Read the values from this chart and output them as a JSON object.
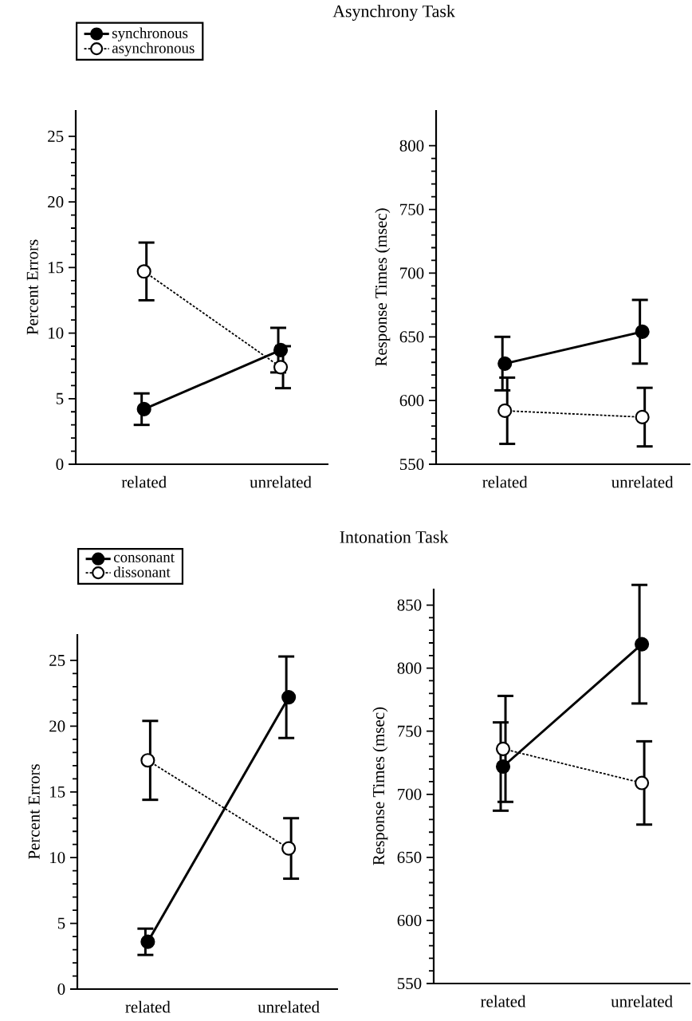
{
  "chart_data": [
    {
      "type": "line",
      "title": "Asynchrony Task",
      "categories": [
        "related",
        "unrelated"
      ],
      "ylabel": "Percent Errors",
      "ylim": [
        0,
        27
      ],
      "yticks": [
        0,
        5,
        10,
        15,
        20,
        25
      ],
      "legend": "top left",
      "marker": "circle",
      "series": [
        {
          "name": "synchronous",
          "color": "#000000",
          "line_style": "solid",
          "values": [
            4.2,
            8.7
          ],
          "errors": [
            1.2,
            1.7
          ]
        },
        {
          "name": "asynchronous",
          "color": "#ffffff",
          "line_style": "dashed",
          "values": [
            14.7,
            7.4
          ],
          "errors": [
            2.2,
            1.6
          ]
        }
      ]
    },
    {
      "type": "line",
      "categories": [
        "related",
        "unrelated"
      ],
      "ylabel": "Response Times (msec)",
      "ylim": [
        550,
        828
      ],
      "yticks": [
        550,
        600,
        650,
        700,
        750,
        800
      ],
      "marker": "circle",
      "series": [
        {
          "color": "#000000",
          "line_style": "solid",
          "values": [
            629,
            654
          ],
          "errors": [
            21,
            25
          ]
        },
        {
          "color": "#ffffff",
          "line_style": "dashed",
          "values": [
            592,
            587
          ],
          "errors": [
            26,
            23
          ]
        }
      ]
    },
    {
      "type": "line",
      "title": "Intonation Task",
      "categories": [
        "related",
        "unrelated"
      ],
      "ylabel": "Percent Errors",
      "ylim": [
        0,
        27
      ],
      "yticks": [
        0,
        5,
        10,
        15,
        20,
        25
      ],
      "legend": "top left",
      "marker": "circle",
      "series": [
        {
          "name": "consonant",
          "color": "#000000",
          "line_style": "solid",
          "values": [
            3.6,
            22.2
          ],
          "errors": [
            1.0,
            3.1
          ]
        },
        {
          "name": "dissonant",
          "color": "#ffffff",
          "line_style": "dashed",
          "values": [
            17.4,
            10.7
          ],
          "errors": [
            3.0,
            2.3
          ]
        }
      ]
    },
    {
      "type": "line",
      "categories": [
        "related",
        "unrelated"
      ],
      "ylabel": "Response Times (msec)",
      "ylim": [
        550,
        863
      ],
      "yticks": [
        550,
        600,
        650,
        700,
        750,
        800,
        850
      ],
      "marker": "circle",
      "series": [
        {
          "color": "#000000",
          "line_style": "solid",
          "values": [
            722,
            819
          ],
          "errors": [
            35,
            47
          ]
        },
        {
          "color": "#ffffff",
          "line_style": "dashed",
          "values": [
            736,
            709
          ],
          "errors": [
            42,
            33
          ]
        }
      ]
    }
  ]
}
